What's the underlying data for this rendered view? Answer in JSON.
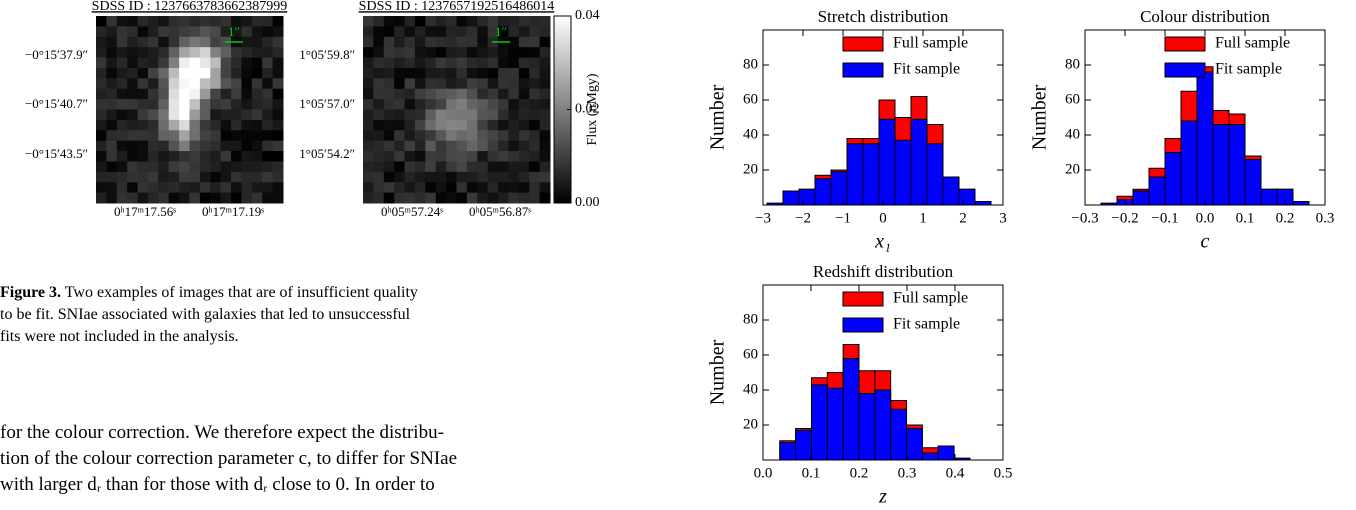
{
  "figure": {
    "images": [
      {
        "title": "SDSS ID : 1237663783662387999",
        "scale_label": "1″",
        "ylabels": [
          "−0°15′37.9″",
          "−0°15′40.7″",
          "−0°15′43.5″"
        ],
        "xlabels": [
          "0ʰ17ᵐ17.56ˢ",
          "0ʰ17ᵐ17.19ˢ"
        ]
      },
      {
        "title": "SDSS ID : 1237657192516486014",
        "scale_label": "1″",
        "ylabels": [
          "1°05′59.8″",
          "1°05′57.0″",
          "1°05′54.2″"
        ],
        "xlabels": [
          "0ʰ05ᵐ57.24ˢ",
          "0ʰ05ᵐ56.87ˢ"
        ]
      }
    ],
    "colorbar": {
      "label": "Flux (nMgy)",
      "clim": [
        0,
        0.04
      ],
      "ticks": [
        {
          "value": 0,
          "label": "0.00"
        },
        {
          "value": 0.02,
          "label": "0.02"
        },
        {
          "value": 0.04,
          "label": "0.04"
        }
      ]
    }
  },
  "caption": {
    "label": "Figure 3.",
    "lines": [
      "Two examples of images that are of insufficient quality",
      "to be fit. SNIae associated with galaxies that led to unsuccessful",
      "fits were not included in the analysis."
    ]
  },
  "body": {
    "lines": [
      "for the colour correction. We therefore expect the distribu-",
      "tion of the colour correction parameter c, to differ for SNIae",
      "with larger dᵣ than for those with dᵣ close to 0. In order to"
    ]
  },
  "chart_data": [
    {
      "type": "histogram",
      "title": "Stretch distribution",
      "x_label": "x₁",
      "y_label": "Number",
      "bins": [
        -2.9,
        -2.5,
        -2.1,
        -1.7,
        -1.3,
        -0.9,
        -0.5,
        -0.1,
        0.3,
        0.7,
        1.1,
        1.5,
        1.9,
        2.3,
        2.7
      ],
      "series": [
        {
          "name": "Full sample",
          "color": "#ff0000",
          "values": [
            1,
            8,
            9,
            17,
            20,
            38,
            38,
            60,
            50,
            62,
            46,
            16,
            9,
            2
          ]
        },
        {
          "name": "Fit sample",
          "color": "#0000ff",
          "values": [
            1,
            8,
            9,
            15,
            19,
            35,
            35,
            49,
            37,
            49,
            35,
            16,
            9,
            2
          ]
        }
      ],
      "xlim": [
        -3,
        3
      ],
      "ylim": [
        0,
        100
      ],
      "xticks": [
        {
          "value": -3,
          "label": "−3"
        },
        {
          "value": -2,
          "label": "−2"
        },
        {
          "value": -1,
          "label": "−1"
        },
        0,
        1,
        2,
        3
      ],
      "yticks": [
        20,
        40,
        60,
        80
      ],
      "legend": "upper right"
    },
    {
      "type": "histogram",
      "title": "Colour distribution",
      "x_label": "c",
      "y_label": "Number",
      "bins": [
        -0.26,
        -0.22,
        -0.18,
        -0.14,
        -0.1,
        -0.06,
        -0.02,
        0.02,
        0.06,
        0.1,
        0.14,
        0.18,
        0.22,
        0.26
      ],
      "series": [
        {
          "name": "Full sample",
          "color": "#ff0000",
          "values": [
            1,
            5,
            9,
            21,
            38,
            65,
            79,
            54,
            52,
            28,
            9,
            9,
            2
          ]
        },
        {
          "name": "Fit sample",
          "color": "#0000ff",
          "values": [
            1,
            3,
            8,
            16,
            30,
            48,
            76,
            46,
            46,
            26,
            9,
            9,
            2
          ]
        }
      ],
      "xlim": [
        -0.3,
        0.3
      ],
      "ylim": [
        0,
        100
      ],
      "xticks": [
        {
          "value": -0.3,
          "label": "−0.3"
        },
        {
          "value": -0.2,
          "label": "−0.2"
        },
        {
          "value": -0.1,
          "label": "−0.1"
        },
        {
          "value": 0,
          "label": "0.0"
        },
        0.1,
        0.2,
        0.3
      ],
      "yticks": [
        20,
        40,
        60,
        80
      ],
      "legend": "upper right"
    },
    {
      "type": "histogram",
      "title": "Redshift distribution",
      "x_label": "z",
      "y_label": "Number",
      "bins": [
        0.035,
        0.068,
        0.101,
        0.134,
        0.167,
        0.2,
        0.233,
        0.266,
        0.299,
        0.332,
        0.365,
        0.398,
        0.431
      ],
      "series": [
        {
          "name": "Full sample",
          "color": "#ff0000",
          "values": [
            11,
            18,
            47,
            50,
            66,
            51,
            51,
            34,
            20,
            7,
            8,
            1
          ]
        },
        {
          "name": "Fit sample",
          "color": "#0000ff",
          "values": [
            10,
            17,
            43,
            41,
            58,
            38,
            40,
            29,
            18,
            4,
            8,
            1
          ]
        }
      ],
      "xlim": [
        0,
        0.5
      ],
      "ylim": [
        0,
        100
      ],
      "xticks": [
        {
          "value": 0,
          "label": "0.0"
        },
        0.1,
        0.2,
        0.3,
        0.4,
        0.5
      ],
      "yticks": [
        20,
        40,
        60,
        80
      ],
      "legend": "upper right"
    }
  ]
}
